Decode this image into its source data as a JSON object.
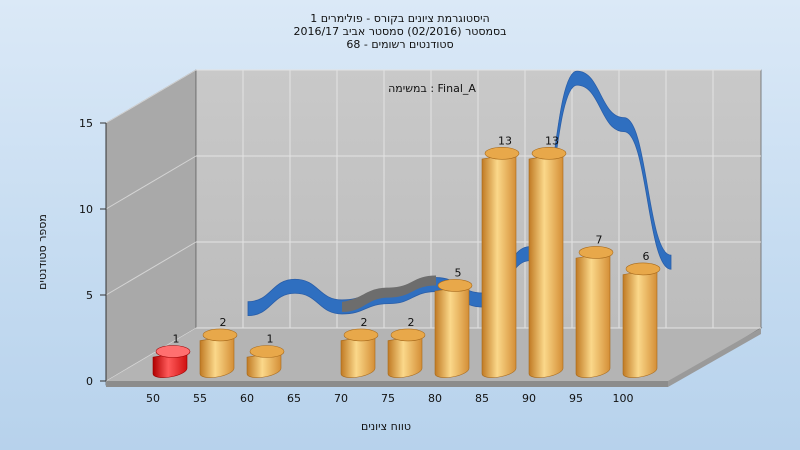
{
  "title_lines": [
    "היסטוגרמת ציונים בקורס - פולימרים 1",
    "בסמסטר  (02/2016)  סמסטר אביב 2016/17",
    "סטודנטים רשומים - 68"
  ],
  "task_label": "במשימה : Final_A",
  "colors": {
    "bar": "#e8a84a",
    "bar_highlight": "#fbd88a",
    "bar_shadow": "#c07a24",
    "bar_red": "#e01818",
    "curve": "#2f6fc0",
    "curve_back": "#6d6d6d",
    "wall": "#c3c3c3",
    "side_wall": "#a8a8a8",
    "floor": "#b6b6b6"
  },
  "chart_data": {
    "type": "bar",
    "title": "היסטוגרמת ציונים בקורס - פולימרים 1",
    "xlabel": "טווח ציונים",
    "ylabel": "מספר סטודנטים",
    "ylim": [
      0,
      15
    ],
    "yticks": [
      0,
      5,
      10,
      15
    ],
    "grid": true,
    "categories": [
      "50",
      "55",
      "60",
      "65",
      "70",
      "75",
      "80",
      "85",
      "90",
      "95",
      "100"
    ],
    "bars": [
      {
        "range_start": 50,
        "value": 1,
        "highlight": true
      },
      {
        "range_start": 55,
        "value": 2
      },
      {
        "range_start": 60,
        "value": 1
      },
      {
        "range_start": 70,
        "value": 2
      },
      {
        "range_start": 75,
        "value": 2
      },
      {
        "range_start": 80,
        "value": 5
      },
      {
        "range_start": 85,
        "value": 13
      },
      {
        "range_start": 90,
        "value": 13
      },
      {
        "range_start": 95,
        "value": 7
      },
      {
        "range_start": 100,
        "value": 6
      }
    ],
    "curve": {
      "type": "smoothed distribution",
      "x": [
        55,
        60,
        65,
        70,
        75,
        80,
        85,
        90,
        95,
        100
      ],
      "y": [
        1.3,
        2.6,
        1.4,
        2.0,
        2.7,
        1.8,
        4.5,
        14.7,
        12.0,
        4.0
      ]
    }
  }
}
